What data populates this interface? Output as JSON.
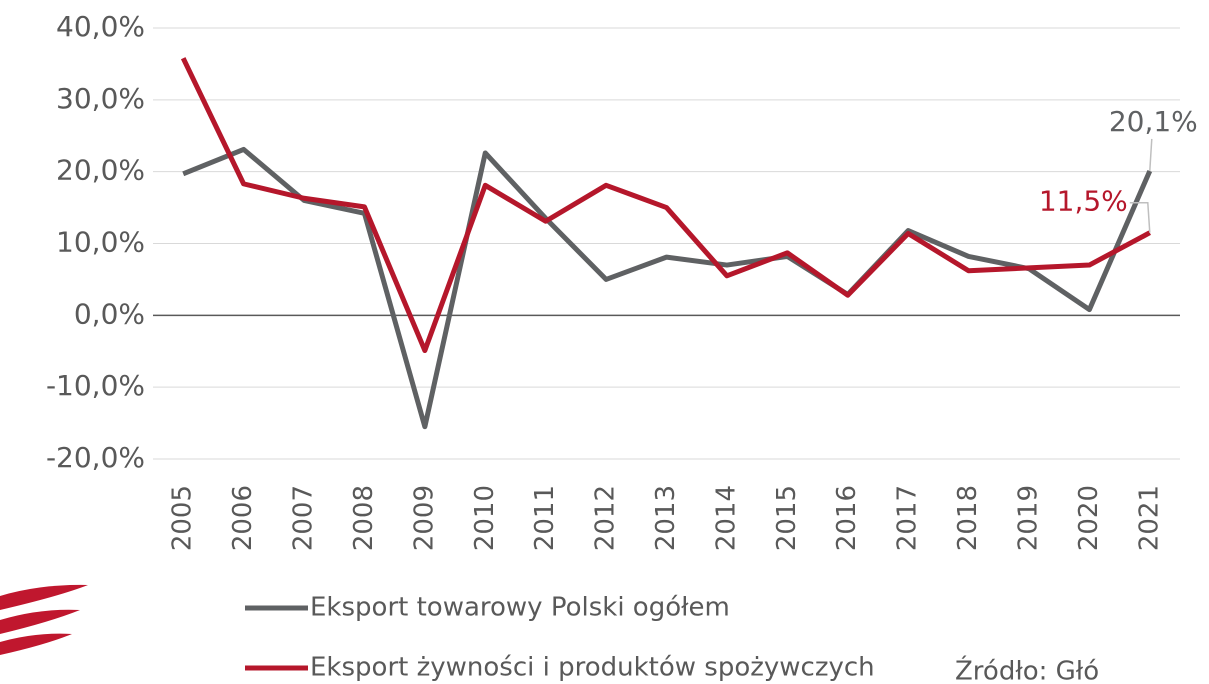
{
  "chart_data": {
    "type": "line",
    "categories": [
      "2005",
      "2006",
      "2007",
      "2008",
      "2009",
      "2010",
      "2011",
      "2012",
      "2013",
      "2014",
      "2015",
      "2016",
      "2017",
      "2018",
      "2019",
      "2020",
      "2021"
    ],
    "series": [
      {
        "name": "Eksport towarowy Polski ogółem",
        "color": "#5f6163",
        "values": [
          19.7,
          23.1,
          16.0,
          14.2,
          -15.5,
          22.6,
          13.5,
          5.0,
          8.1,
          7.0,
          8.2,
          2.9,
          11.8,
          8.2,
          6.5,
          0.8,
          20.1
        ],
        "value_labels": [
          null,
          null,
          null,
          null,
          null,
          null,
          null,
          null,
          null,
          null,
          null,
          null,
          null,
          null,
          null,
          null,
          "20,1%"
        ]
      },
      {
        "name": "Eksport żywności i produktów spożywczych",
        "color": "#b5172b",
        "values": [
          35.8,
          18.3,
          16.3,
          15.1,
          -4.9,
          18.1,
          13.1,
          18.1,
          15.0,
          5.5,
          8.7,
          2.8,
          11.4,
          6.2,
          6.6,
          7.0,
          11.5
        ],
        "value_labels": [
          null,
          null,
          null,
          null,
          null,
          null,
          null,
          null,
          null,
          null,
          null,
          null,
          null,
          null,
          null,
          null,
          "11,5%"
        ]
      }
    ],
    "ylim": [
      -20,
      40
    ],
    "yticks": [
      {
        "value": -20,
        "label": "-20,0%"
      },
      {
        "value": -10,
        "label": "-10,0%"
      },
      {
        "value": 0,
        "label": "0,0%"
      },
      {
        "value": 10,
        "label": "10,0%"
      },
      {
        "value": 20,
        "label": "20,0%"
      },
      {
        "value": 30,
        "label": "30,0%"
      },
      {
        "value": 40,
        "label": "40,0%"
      }
    ],
    "grid": true,
    "legend": "bottom",
    "source": "Źródło: Głó"
  }
}
